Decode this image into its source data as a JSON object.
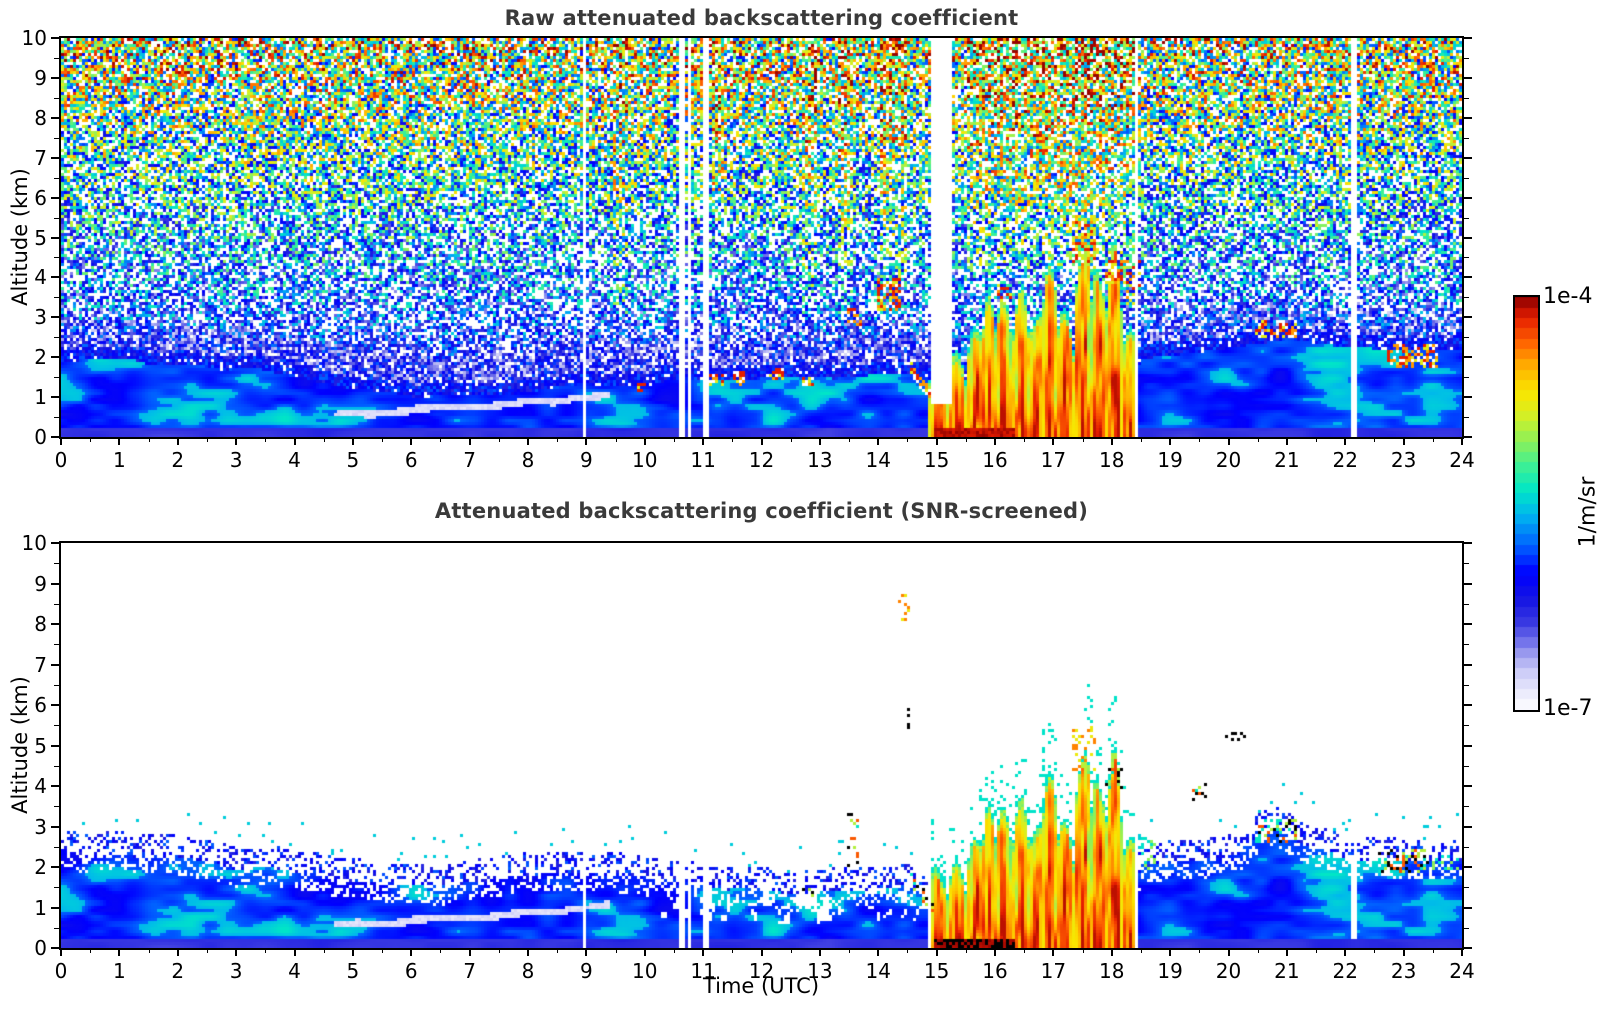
{
  "figure": {
    "background": "#ffffff"
  },
  "panels": [
    {
      "id": "raw",
      "title": "Raw attenuated backscattering coefficient",
      "ylabel": "Altitude (km)"
    },
    {
      "id": "screened",
      "title": "Attenuated backscattering coefficient (SNR-screened)",
      "ylabel": "Altitude (km)",
      "xlabel": "Time (UTC)"
    }
  ],
  "colorbar": {
    "max_label": "1e-4",
    "min_label": "1e-7",
    "units_label": "1/m/sr"
  },
  "chart_data": [
    {
      "type": "heatmap",
      "title": "Raw attenuated backscattering coefficient",
      "xlabel": "",
      "ylabel": "Altitude (km)",
      "x_axis": {
        "label": "Time (UTC)",
        "range": [
          0,
          24
        ],
        "major_ticks": [
          0,
          1,
          2,
          3,
          4,
          5,
          6,
          7,
          8,
          9,
          10,
          11,
          12,
          13,
          14,
          15,
          16,
          17,
          18,
          19,
          20,
          21,
          22,
          23,
          24
        ],
        "minor_tick_step": 0.5
      },
      "y_axis": {
        "label": "Altitude (km)",
        "range": [
          0,
          10
        ],
        "major_ticks": [
          0,
          1,
          2,
          3,
          4,
          5,
          6,
          7,
          8,
          9,
          10
        ],
        "minor_tick_step": 0.5
      },
      "value_scale": {
        "type": "log10",
        "min": 1e-07,
        "max": 0.0001,
        "units": "1/m/sr"
      },
      "colormap": {
        "stops": [
          [
            0.0,
            "#ffffff"
          ],
          [
            0.045,
            "#e9e9fc"
          ],
          [
            0.09,
            "#cdcdf8"
          ],
          [
            0.13,
            "#a3a3f0"
          ],
          [
            0.17,
            "#6a6aea"
          ],
          [
            0.21,
            "#3a3ae2"
          ],
          [
            0.27,
            "#1414e4"
          ],
          [
            0.33,
            "#0000ff"
          ],
          [
            0.4,
            "#0064ff"
          ],
          [
            0.47,
            "#00b4f0"
          ],
          [
            0.53,
            "#00e6c8"
          ],
          [
            0.59,
            "#3cf096"
          ],
          [
            0.65,
            "#8cf05a"
          ],
          [
            0.71,
            "#d2f028"
          ],
          [
            0.77,
            "#fae600"
          ],
          [
            0.83,
            "#ffb400"
          ],
          [
            0.89,
            "#ff6400"
          ],
          [
            0.95,
            "#e61e00"
          ],
          [
            1.0,
            "#8c0000"
          ]
        ]
      },
      "boundary_layer": {
        "top_km": {
          "t": [
            0,
            1,
            2,
            3,
            4,
            5,
            5.8,
            7,
            8,
            9,
            10,
            11,
            12,
            13,
            14,
            14.8,
            15.3,
            18.3,
            18.5,
            19.5,
            21,
            22,
            23,
            24
          ],
          "z": [
            2.0,
            1.9,
            1.85,
            1.7,
            1.5,
            1.2,
            1.05,
            1.0,
            1.15,
            1.3,
            1.35,
            1.4,
            1.45,
            1.5,
            1.55,
            1.6,
            1.0,
            1.0,
            2.0,
            2.1,
            2.3,
            2.2,
            2.25,
            2.2
          ]
        },
        "base_value_log10": -5.88,
        "ground_band_value_log10": -6.32,
        "ground_band_top_km": 0.2
      },
      "residual_layer_streak": {
        "t_range": [
          4.7,
          9.4
        ],
        "z_start_km": 0.52,
        "z_end_km": 1.05,
        "value_log10": -6.86
      },
      "noise_profile": {
        "alt_km": [
          2,
          3,
          4,
          5,
          6,
          7,
          8,
          9,
          10
        ],
        "mean_log10": [
          -6.15,
          -6.0,
          -5.85,
          -5.7,
          -5.5,
          -5.35,
          -5.2,
          -5.05,
          -4.95
        ],
        "spread_log10": [
          0.5,
          0.65,
          0.75,
          0.8,
          0.85,
          0.9,
          0.95,
          1.0,
          1.05
        ],
        "white_fraction": [
          0.3,
          0.34,
          0.36,
          0.33,
          0.28,
          0.25,
          0.22,
          0.2,
          0.18
        ]
      },
      "bright_bands": [
        {
          "t": [
            9.45,
            9.72
          ],
          "z_min": 3
        },
        {
          "t": [
            11.15,
            11.35
          ],
          "z_min": 6
        },
        {
          "t": [
            12.7,
            12.97
          ],
          "z_min": 3
        },
        {
          "t": [
            13.3,
            13.58
          ],
          "z_min": 3
        },
        {
          "t": [
            14.05,
            14.5
          ],
          "z_min": 4
        },
        {
          "t": [
            15.5,
            18.4
          ],
          "z_min": 4.2
        }
      ],
      "plume_event": {
        "t_range": [
          14.85,
          18.42
        ],
        "columns": [
          {
            "t": 15.05,
            "top_km": 2.1
          },
          {
            "t": 15.35,
            "top_km": 2.5
          },
          {
            "t": 15.65,
            "top_km": 3.2
          },
          {
            "t": 15.9,
            "top_km": 2.9
          },
          {
            "t": 16.15,
            "top_km": 3.3
          },
          {
            "t": 16.45,
            "top_km": 3.5
          },
          {
            "t": 16.7,
            "top_km": 3.1
          },
          {
            "t": 16.95,
            "top_km": 3.7
          },
          {
            "t": 17.2,
            "top_km": 3.0
          },
          {
            "t": 17.5,
            "top_km": 4.5
          },
          {
            "t": 17.8,
            "top_km": 4.1
          },
          {
            "t": 18.05,
            "top_km": 4.8
          },
          {
            "t": 18.3,
            "top_km": 3.5
          }
        ],
        "ground_saturation": {
          "t_range": [
            14.95,
            16.35
          ],
          "top_km": 0.22,
          "value_log10": -4.08
        }
      },
      "data_gaps": [
        {
          "t": [
            8.93,
            8.98
          ],
          "z": [
            0,
            10
          ]
        },
        {
          "t": [
            10.6,
            10.68
          ],
          "z": [
            0,
            10
          ]
        },
        {
          "t": [
            10.74,
            10.8
          ],
          "z": [
            0,
            10
          ]
        },
        {
          "t": [
            11.02,
            11.08
          ],
          "z": [
            0,
            10
          ]
        },
        {
          "t": [
            14.9,
            15.28
          ],
          "z": [
            0.85,
            10
          ]
        },
        {
          "t": [
            18.38,
            18.44
          ],
          "z": [
            0,
            10
          ]
        },
        {
          "t": [
            22.12,
            22.18
          ],
          "z": [
            0,
            10
          ]
        }
      ],
      "cloud_echoes": [
        {
          "t": [
            9.88,
            10.02
          ],
          "z": [
            1.12,
            1.38
          ],
          "palette": "red",
          "density": 0.5
        },
        {
          "t": [
            11.08,
            11.4
          ],
          "z": [
            1.25,
            1.6
          ],
          "palette": "red",
          "density": 0.45
        },
        {
          "t": [
            11.5,
            11.72
          ],
          "z": [
            1.3,
            1.62
          ],
          "palette": "red",
          "density": 0.45
        },
        {
          "t": [
            12.15,
            12.4
          ],
          "z": [
            1.45,
            1.8
          ],
          "palette": "red",
          "density": 0.45
        },
        {
          "t": [
            12.68,
            12.92
          ],
          "z": [
            1.26,
            1.48
          ],
          "palette": "red",
          "density": 0.5
        },
        {
          "t": [
            13.48,
            13.7
          ],
          "z": [
            2.8,
            3.2
          ],
          "palette": "red",
          "density": 0.4
        },
        {
          "t": [
            14.0,
            14.38
          ],
          "z": [
            3.15,
            3.95
          ],
          "palette": "red",
          "density": 0.45
        },
        {
          "t": [
            14.52,
            14.96
          ],
          "z": [
            0.95,
            1.78
          ],
          "palette": "red",
          "density": 0.5,
          "shape": "descending",
          "thick": 0.16
        },
        {
          "t": [
            16.02,
            16.3
          ],
          "z": [
            3.35,
            3.8
          ],
          "palette": "red",
          "density": 0.45
        },
        {
          "t": [
            17.3,
            17.75
          ],
          "z": [
            4.35,
            5.4
          ],
          "palette": "red",
          "density": 0.4
        },
        {
          "t": [
            17.88,
            18.22
          ],
          "z": [
            3.85,
            4.45
          ],
          "palette": "red",
          "density": 0.4
        },
        {
          "t": [
            18.25,
            18.5
          ],
          "z": [
            3.3,
            4.4
          ],
          "palette": "red",
          "density": 0.35
        },
        {
          "t": [
            20.45,
            21.15
          ],
          "z": [
            2.45,
            2.9
          ],
          "palette": "red",
          "density": 0.45
        },
        {
          "t": [
            22.7,
            23.6
          ],
          "z": [
            1.7,
            2.35
          ],
          "palette": "red",
          "density": 0.4
        }
      ]
    },
    {
      "type": "heatmap",
      "title": "Attenuated backscattering coefficient (SNR-screened)",
      "xlabel": "Time (UTC)",
      "ylabel": "Altitude (km)",
      "x_axis": {
        "label": "Time (UTC)",
        "range": [
          0,
          24
        ],
        "major_ticks": [
          0,
          1,
          2,
          3,
          4,
          5,
          6,
          7,
          8,
          9,
          10,
          11,
          12,
          13,
          14,
          15,
          16,
          17,
          18,
          19,
          20,
          21,
          22,
          23,
          24
        ],
        "minor_tick_step": 0.5
      },
      "y_axis": {
        "label": "Altitude (km)",
        "range": [
          0,
          10
        ],
        "major_ticks": [
          0,
          1,
          2,
          3,
          4,
          5,
          6,
          7,
          8,
          9,
          10
        ],
        "minor_tick_step": 0.5
      },
      "value_scale": {
        "type": "log10",
        "min": 1e-07,
        "max": 0.0001,
        "units": "1/m/sr"
      },
      "screened_layer": {
        "solid_top_km": {
          "t": [
            0,
            1.5,
            3,
            4.5,
            5.5,
            6.5,
            7.5,
            8.5,
            9.5,
            10.5,
            11.5,
            12.5,
            13.5,
            14.5,
            14.9,
            15.3,
            18.3,
            18.5,
            19.5,
            20.2,
            20.8,
            21.3,
            21.9,
            22.6,
            23.3,
            24
          ],
          "z": [
            2.35,
            2.3,
            2.0,
            1.75,
            1.55,
            1.5,
            1.65,
            1.85,
            1.8,
            1.6,
            1.45,
            1.35,
            1.4,
            1.5,
            1.3,
            0.15,
            0.15,
            2.05,
            2.2,
            2.3,
            3.0,
            2.55,
            2.25,
            2.2,
            2.15,
            2.1
          ]
        },
        "fringe_km": 0.55,
        "hole_region_t": [
          10.3,
          14.85
        ]
      },
      "data_gaps": [
        {
          "t": [
            8.93,
            8.98
          ],
          "z": [
            0,
            10
          ]
        },
        {
          "t": [
            10.6,
            10.68
          ],
          "z": [
            0,
            10
          ]
        },
        {
          "t": [
            10.74,
            10.8
          ],
          "z": [
            0,
            10
          ]
        },
        {
          "t": [
            11.02,
            11.08
          ],
          "z": [
            0,
            10
          ]
        },
        {
          "t": [
            14.86,
            14.9
          ],
          "z": [
            0,
            10
          ]
        },
        {
          "t": [
            18.38,
            18.44
          ],
          "z": [
            0,
            10
          ]
        },
        {
          "t": [
            22.12,
            22.18
          ],
          "z": [
            0.25,
            2.3
          ]
        }
      ],
      "isolated_echoes": [
        {
          "t": [
            12.68,
            12.92
          ],
          "z": [
            1.26,
            1.46
          ],
          "palette": "mixed",
          "density": 0.5
        },
        {
          "t": [
            13.46,
            13.66
          ],
          "z": [
            1.9,
            3.3
          ],
          "palette": "mixed",
          "density": 0.18
        },
        {
          "t": [
            14.36,
            14.52
          ],
          "z": [
            8.05,
            8.85
          ],
          "palette": "orange",
          "density": 0.2
        },
        {
          "t": [
            14.48,
            14.56
          ],
          "z": [
            5.4,
            6.1
          ],
          "palette": "black",
          "density": 0.2
        },
        {
          "t": [
            14.52,
            14.96
          ],
          "z": [
            0.95,
            1.78
          ],
          "palette": "mixed",
          "density": 0.45,
          "shape": "descending",
          "thick": 0.16
        },
        {
          "t": [
            17.3,
            17.75
          ],
          "z": [
            4.35,
            5.45
          ],
          "palette": "orange",
          "density": 0.22
        },
        {
          "t": [
            17.88,
            18.22
          ],
          "z": [
            3.9,
            4.45
          ],
          "palette": "mixed",
          "density": 0.3
        },
        {
          "t": [
            18.48,
            18.78
          ],
          "z": [
            1.95,
            2.75
          ],
          "palette": "green",
          "density": 0.3
        },
        {
          "t": [
            19.35,
            19.62
          ],
          "z": [
            3.5,
            4.05
          ],
          "palette": "mixed",
          "density": 0.3
        },
        {
          "t": [
            19.9,
            20.3
          ],
          "z": [
            5.08,
            5.3
          ],
          "palette": "black",
          "density": 0.3
        },
        {
          "t": [
            20.45,
            21.18
          ],
          "z": [
            2.6,
            3.2
          ],
          "palette": "mixed",
          "density": 0.4
        },
        {
          "t": [
            22.55,
            23.45
          ],
          "z": [
            1.85,
            2.45
          ],
          "palette": "mixed",
          "density": 0.35
        },
        {
          "t": [
            23.5,
            23.95
          ],
          "z": [
            1.95,
            2.3
          ],
          "palette": "green",
          "density": 0.25
        }
      ]
    }
  ]
}
